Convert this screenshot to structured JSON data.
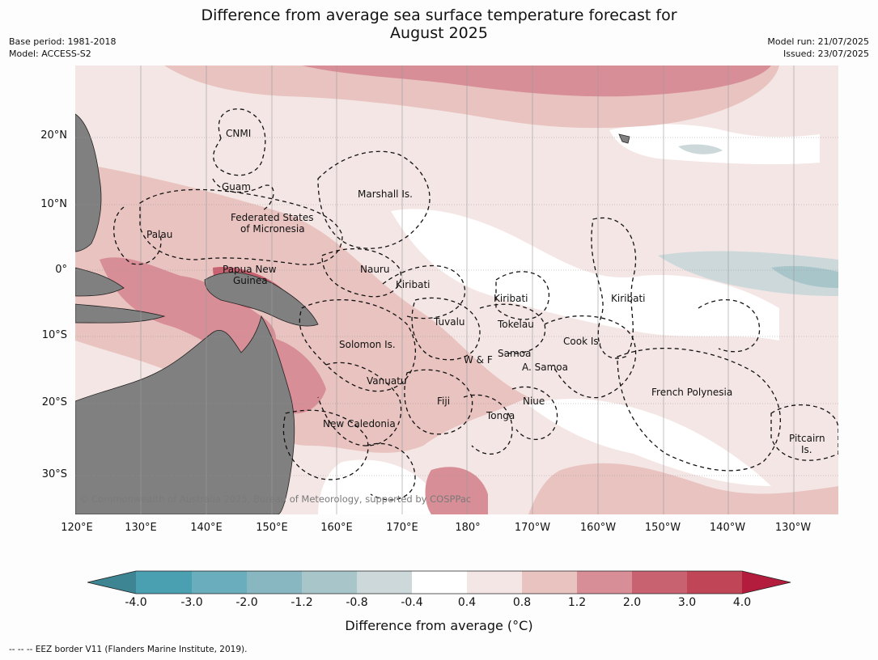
{
  "title_line1": "Difference from average sea surface temperature forecast for",
  "title_line2": "August 2025",
  "meta_left": {
    "base_period": "Base period: 1981-2018",
    "model": "Model: ACCESS-S2"
  },
  "meta_right": {
    "model_run": "Model run: 21/07/2025",
    "issued": "Issued: 23/07/2025"
  },
  "lat_labels": [
    "20°N",
    "10°N",
    "0°",
    "10°S",
    "20°S",
    "30°S"
  ],
  "lon_labels": [
    "120°E",
    "130°E",
    "140°E",
    "150°E",
    "160°E",
    "170°E",
    "180°",
    "170°W",
    "160°W",
    "150°W",
    "140°W",
    "130°W"
  ],
  "regions": {
    "cnmi": "CNMI",
    "guam": "Guam",
    "marshall": "Marshall Is.",
    "fsm1": "Federated States",
    "fsm2": "of Micronesia",
    "palau": "Palau",
    "png1": "Papua New",
    "png2": "Guinea",
    "nauru": "Nauru",
    "kiribati_w": "Kiribati",
    "kiribati_c": "Kiribati",
    "kiribati_e": "Kiribati",
    "tuvalu": "Tuvalu",
    "tokelau": "Tokelau",
    "cook": "Cook Is.",
    "solomon": "Solomon Is.",
    "wf": "W & F",
    "samoa": "Samoa",
    "asamoa": "A. Samoa",
    "vanuatu": "Vanuatu",
    "fiji": "Fiji",
    "niue": "Niue",
    "tonga": "Tonga",
    "frpoly": "French Polynesia",
    "newcal": "New Caledonia",
    "pitcairn1": "Pitcairn",
    "pitcairn2": "Is."
  },
  "copyright": "© Commonwealth of Australia 2025, Bureau of Meteorology, supported by COSPPac",
  "colorbar": {
    "labels": [
      "-4.0",
      "-3.0",
      "-2.0",
      "-1.2",
      "-0.8",
      "-0.4",
      "0.4",
      "0.8",
      "1.2",
      "2.0",
      "3.0",
      "4.0"
    ],
    "colors": [
      "#3d8592",
      "#4aa0b1",
      "#6aaebd",
      "#88b6c1",
      "#a8c5ca",
      "#ccd8da",
      "#ffffff",
      "#f4e6e4",
      "#e8c3c0",
      "#d88e96",
      "#c96270",
      "#c04556",
      "#b31c3c"
    ],
    "title": "Difference from average (°C)"
  },
  "footnote": "--  --  -- EEZ border V11 (Flanders Marine Institute, 2019)."
}
